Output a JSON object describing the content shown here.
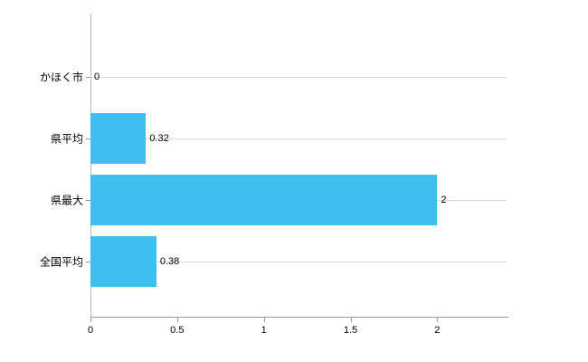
{
  "chart_data": {
    "type": "bar",
    "orientation": "horizontal",
    "title": "",
    "xlabel": "",
    "ylabel": "",
    "categories": [
      "かほく市",
      "県平均",
      "県最大",
      "全国平均"
    ],
    "values": [
      0,
      0.32,
      2,
      0.38
    ],
    "value_labels": [
      "0",
      "0.32",
      "2",
      "0.38"
    ],
    "x_ticks": [
      0,
      0.5,
      1,
      1.5,
      2
    ],
    "x_tick_labels": [
      "0",
      "0.5",
      "1",
      "1.5",
      "2"
    ],
    "xlim": [
      0,
      2.4
    ],
    "grid": "horizontal-category-lines",
    "legend": "none",
    "bar_color": "#3fbfef",
    "axis_color": "#999999",
    "gridline_color": "#d9d9d9",
    "background_color": "#ffffff"
  }
}
